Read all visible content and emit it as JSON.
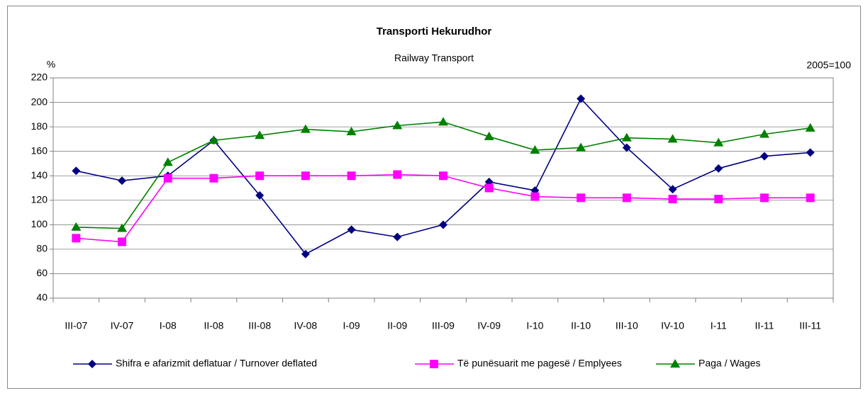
{
  "chart_data": {
    "type": "line",
    "title": "Transporti Hekurudhor",
    "subtitle": "Railway Transport",
    "y_label": "%",
    "annotation": "2005=100",
    "categories": [
      "III-07",
      "IV-07",
      "I-08",
      "II-08",
      "III-08",
      "IV-08",
      "I-09",
      "II-09",
      "III-09",
      "IV-09",
      "I-10",
      "II-10",
      "III-10",
      "IV-10",
      "I-11",
      "II-11",
      "III-11"
    ],
    "series": [
      {
        "name": "Shifra e afarizmit deflatuar / Turnover deflated",
        "color": "#000080",
        "marker": "diamond",
        "values": [
          144,
          136,
          140,
          169,
          124,
          76,
          96,
          90,
          100,
          135,
          128,
          203,
          163,
          129,
          146,
          156,
          159
        ]
      },
      {
        "name": "Të punësuarit me pagesë / Emplyees",
        "color": "#ff00ff",
        "marker": "square",
        "values": [
          89,
          86,
          138,
          138,
          140,
          140,
          140,
          141,
          140,
          130,
          123,
          122,
          122,
          121,
          121,
          122,
          122
        ]
      },
      {
        "name": "Paga / Wages",
        "color": "#008000",
        "marker": "triangle",
        "values": [
          98,
          97,
          151,
          169,
          173,
          178,
          176,
          181,
          184,
          172,
          161,
          163,
          171,
          170,
          167,
          174,
          179
        ]
      }
    ],
    "ylim": [
      40,
      220
    ],
    "yticks": [
      40,
      60,
      80,
      100,
      120,
      140,
      160,
      180,
      200,
      220
    ],
    "grid": true,
    "legend": "bottom"
  }
}
